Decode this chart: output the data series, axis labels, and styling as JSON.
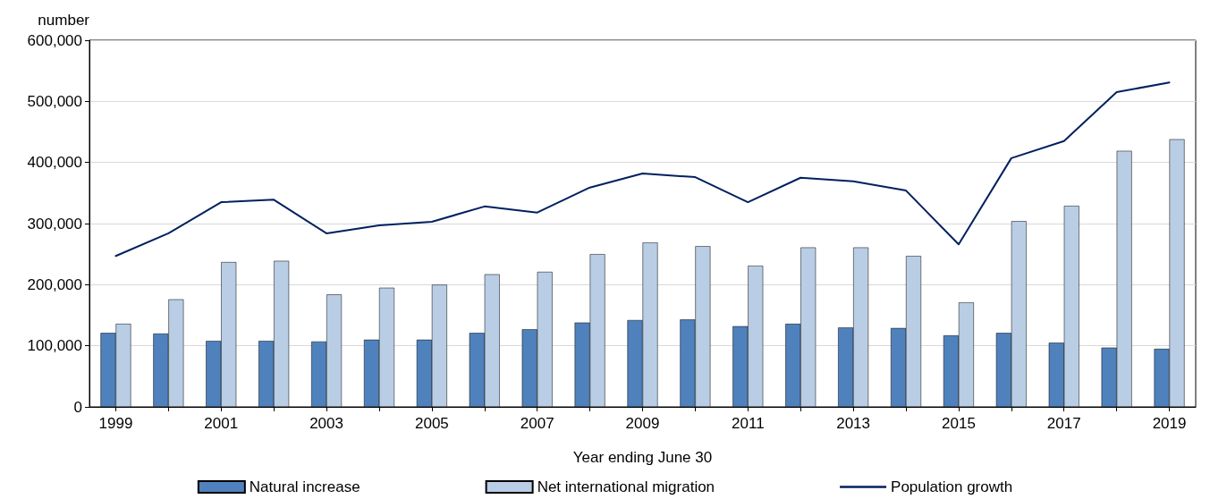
{
  "chart_data": {
    "type": "bar",
    "xlabel": "Year ending June 30",
    "ylabel": "number",
    "categories": [
      "1999",
      null,
      "2001",
      null,
      "2003",
      null,
      "2005",
      null,
      "2007",
      null,
      "2009",
      null,
      "2011",
      null,
      "2013",
      null,
      "2015",
      null,
      "2017",
      null,
      "2019"
    ],
    "series": [
      {
        "name": "Natural increase",
        "color": "#4f81bd",
        "values": [
          121000,
          120000,
          108000,
          108000,
          107000,
          110000,
          110000,
          121000,
          127000,
          138000,
          142000,
          143000,
          132000,
          136000,
          130000,
          129000,
          117000,
          121000,
          105000,
          97000,
          95000
        ]
      },
      {
        "name": "Net international migration",
        "color": "#b9cde5",
        "values": [
          136000,
          176000,
          237000,
          239000,
          184000,
          195000,
          200000,
          217000,
          221000,
          250000,
          269000,
          263000,
          231000,
          261000,
          261000,
          247000,
          171000,
          304000,
          329000,
          419000,
          438000
        ]
      },
      {
        "name": "Population growth",
        "type": "line",
        "color": "#002060",
        "values": [
          247000,
          284000,
          335000,
          339000,
          284000,
          297000,
          303000,
          328000,
          318000,
          359000,
          382000,
          376000,
          335000,
          375000,
          369000,
          354000,
          266000,
          407000,
          435000,
          515000,
          531000
        ]
      }
    ],
    "ylim": [
      0,
      600000
    ],
    "yticks": [
      0,
      {
        "value": 100000,
        "label": "100,000"
      },
      {
        "value": 200000,
        "label": "200,000"
      },
      {
        "value": 300000,
        "label": "300,000"
      },
      {
        "value": 400000,
        "label": "400,000"
      },
      {
        "value": 500000,
        "label": "500,000"
      },
      {
        "value": 600000,
        "label": "600,000"
      }
    ],
    "grid": "y",
    "legend": "bottom"
  }
}
